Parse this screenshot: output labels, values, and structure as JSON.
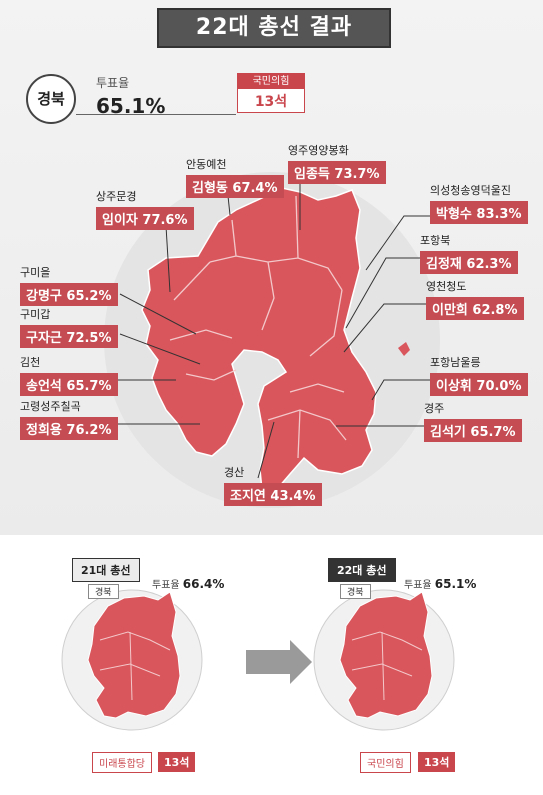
{
  "header": {
    "title": "22대 총선 결과"
  },
  "summary": {
    "region": "경북",
    "turnout_label": "투표율",
    "turnout_value": "65.1%",
    "party": "국민의힘",
    "seats": "13석"
  },
  "districts": [
    {
      "name": "안동예천",
      "winner": "김형동 67.4%"
    },
    {
      "name": "영주영양봉화",
      "winner": "임종득 73.7%"
    },
    {
      "name": "상주문경",
      "winner": "임이자 77.6%"
    },
    {
      "name": "의성청송영덕울진",
      "winner": "박형수 83.3%"
    },
    {
      "name": "포항북",
      "winner": "김정재 62.3%"
    },
    {
      "name": "구미을",
      "winner": "강명구 65.2%"
    },
    {
      "name": "영천청도",
      "winner": "이만희 62.8%"
    },
    {
      "name": "구미갑",
      "winner": "구자근 72.5%"
    },
    {
      "name": "포항남울릉",
      "winner": "이상휘 70.0%"
    },
    {
      "name": "김천",
      "winner": "송언석 65.7%"
    },
    {
      "name": "고령성주칠곡",
      "winner": "정희용 76.2%"
    },
    {
      "name": "경주",
      "winner": "김석기 65.7%"
    },
    {
      "name": "경산",
      "winner": "조지연 43.4%"
    }
  ],
  "comparison": {
    "left": {
      "tag": "21대 총선",
      "turnout_label": "투표율",
      "turnout_value": "66.4%",
      "region": "경북",
      "party": "미래통합당",
      "seats": "13석"
    },
    "right": {
      "tag": "22대 총선",
      "turnout_label": "투표율",
      "turnout_value": "65.1%",
      "region": "경북",
      "party": "국민의힘",
      "seats": "13석"
    }
  },
  "colors": {
    "map_fill": "#d9565c",
    "label_bg": "#c44c52",
    "accent": "#c9464d"
  }
}
